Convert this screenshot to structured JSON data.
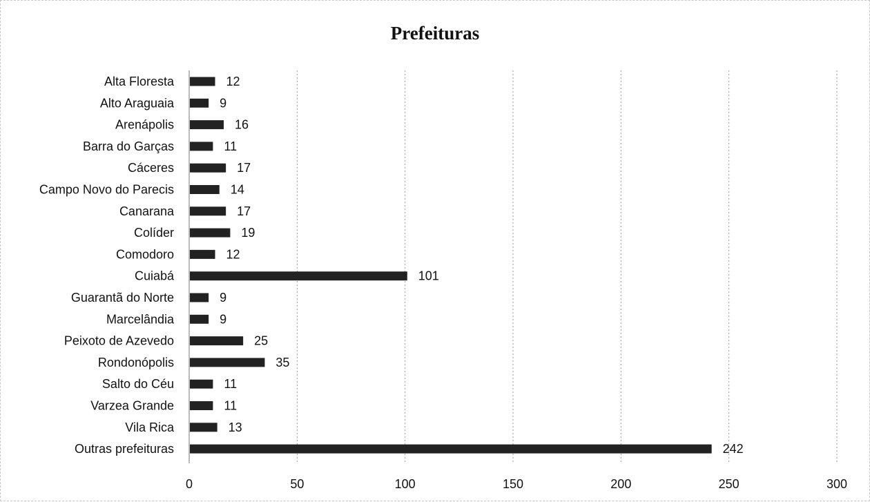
{
  "chart_data": {
    "type": "bar",
    "orientation": "horizontal",
    "title": "Prefeituras",
    "categories": [
      "Alta Floresta",
      "Alto Araguaia",
      "Arenápolis",
      "Barra do Garças",
      "Cáceres",
      "Campo Novo do Parecis",
      "Canarana",
      "Colíder",
      "Comodoro",
      "Cuiabá",
      "Guarantã do Norte",
      "Marcelândia",
      "Peixoto de Azevedo",
      "Rondonópolis",
      "Salto do Céu",
      "Varzea Grande",
      "Vila Rica",
      "Outras prefeituras"
    ],
    "values": [
      12,
      9,
      16,
      11,
      17,
      14,
      17,
      19,
      12,
      101,
      9,
      9,
      25,
      35,
      11,
      11,
      13,
      242
    ],
    "xlim": [
      0,
      300
    ],
    "xticks": [
      0,
      50,
      100,
      150,
      200,
      250,
      300
    ],
    "grid": "vertical dashed",
    "bar_color": "#222222",
    "legend": "none"
  }
}
